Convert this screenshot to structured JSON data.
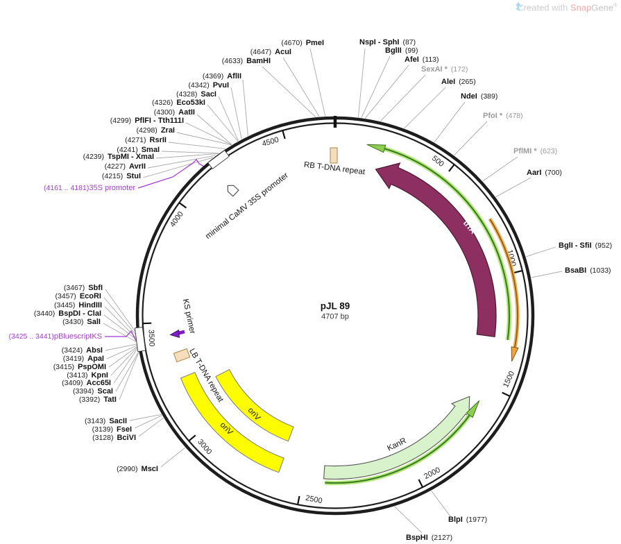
{
  "watermark": {
    "prefix": "Created with ",
    "brand_snap": "Snap",
    "brand_gene": "Gene",
    "reg": "®"
  },
  "plasmid": {
    "name": "pJL 89",
    "size": "4707 bp"
  },
  "ticks": [
    "500",
    "1000",
    "1500",
    "2000",
    "2500",
    "3000",
    "3500",
    "4000",
    "4500"
  ],
  "features": [
    {
      "label": "trfA"
    },
    {
      "label": "KanR"
    },
    {
      "label": "oriV"
    },
    {
      "label": "oriV"
    },
    {
      "label": "RB T-DNA repeat"
    },
    {
      "label": "LB T-DNA repeat"
    },
    {
      "label": "KS primer"
    },
    {
      "label": "minimal CaMV 35S promoter"
    }
  ],
  "regions": [
    {
      "pos": "(4161 .. 4181)",
      "name": "35S promoter"
    },
    {
      "pos": "(3425 .. 3441)",
      "name": "pBluescriptKS"
    }
  ],
  "sites": [
    {
      "pos": "(4670)",
      "name": "PmeI",
      "order": "pos-first",
      "muted": false
    },
    {
      "pos": "(4647)",
      "name": "AcuI",
      "order": "pos-first",
      "muted": false
    },
    {
      "pos": "(4633)",
      "name": "BamHI",
      "order": "pos-first",
      "muted": false
    },
    {
      "pos": "(4369)",
      "name": "AflII",
      "order": "pos-first",
      "muted": false
    },
    {
      "pos": "(4342)",
      "name": "PvuI",
      "order": "pos-first",
      "muted": false
    },
    {
      "pos": "(4328)",
      "name": "SacI",
      "order": "pos-first",
      "muted": false
    },
    {
      "pos": "(4326)",
      "name": "Eco53kI",
      "order": "pos-first",
      "muted": false
    },
    {
      "pos": "(4300)",
      "name": "AatII",
      "order": "pos-first",
      "muted": false
    },
    {
      "pos": "(4299)",
      "name": "PflFI - Tth111I",
      "order": "pos-first",
      "muted": false
    },
    {
      "pos": "(4298)",
      "name": "ZraI",
      "order": "pos-first",
      "muted": false
    },
    {
      "pos": "(4271)",
      "name": "RsrII",
      "order": "pos-first",
      "muted": false
    },
    {
      "pos": "(4241)",
      "name": "SmaI",
      "order": "pos-first",
      "muted": false
    },
    {
      "pos": "(4239)",
      "name": "TspMI - XmaI",
      "order": "pos-first",
      "muted": false
    },
    {
      "pos": "(4227)",
      "name": "AvrII",
      "order": "pos-first",
      "muted": false
    },
    {
      "pos": "(4215)",
      "name": "StuI",
      "order": "pos-first",
      "muted": false
    },
    {
      "pos": "(3467)",
      "name": "SbfI",
      "order": "pos-first",
      "muted": false
    },
    {
      "pos": "(3457)",
      "name": "EcoRI",
      "order": "pos-first",
      "muted": false
    },
    {
      "pos": "(3445)",
      "name": "HindIII",
      "order": "pos-first",
      "muted": false
    },
    {
      "pos": "(3440)",
      "name": "BspDI - ClaI",
      "order": "pos-first",
      "muted": false
    },
    {
      "pos": "(3430)",
      "name": "SalI",
      "order": "pos-first",
      "muted": false
    },
    {
      "pos": "(3424)",
      "name": "AbsI",
      "order": "pos-first",
      "muted": false
    },
    {
      "pos": "(3419)",
      "name": "ApaI",
      "order": "pos-first",
      "muted": false
    },
    {
      "pos": "(3415)",
      "name": "PspOMI",
      "order": "pos-first",
      "muted": false
    },
    {
      "pos": "(3413)",
      "name": "KpnI",
      "order": "pos-first",
      "muted": false
    },
    {
      "pos": "(3409)",
      "name": "Acc65I",
      "order": "pos-first",
      "muted": false
    },
    {
      "pos": "(3394)",
      "name": "ScaI",
      "order": "pos-first",
      "muted": false
    },
    {
      "pos": "(3392)",
      "name": "TatI",
      "order": "pos-first",
      "muted": false
    },
    {
      "pos": "(3143)",
      "name": "SacII",
      "order": "pos-first",
      "muted": false
    },
    {
      "pos": "(3139)",
      "name": "FseI",
      "order": "pos-first",
      "muted": false
    },
    {
      "pos": "(3128)",
      "name": "BciVI",
      "order": "pos-first",
      "muted": false
    },
    {
      "pos": "(2990)",
      "name": "MscI",
      "order": "pos-first",
      "muted": false
    },
    {
      "pos": "(87)",
      "name": "NspI - SphI",
      "order": "name-first",
      "muted": false
    },
    {
      "pos": "(99)",
      "name": "BglII",
      "order": "name-first",
      "muted": false
    },
    {
      "pos": "(113)",
      "name": "AfeI",
      "order": "name-first",
      "muted": false
    },
    {
      "pos": "(172)",
      "name": "SexAI *",
      "order": "name-first",
      "muted": true
    },
    {
      "pos": "(265)",
      "name": "AleI",
      "order": "name-first",
      "muted": false
    },
    {
      "pos": "(389)",
      "name": "NdeI",
      "order": "name-first",
      "muted": false
    },
    {
      "pos": "(478)",
      "name": "PfoI *",
      "order": "name-first",
      "muted": true
    },
    {
      "pos": "(623)",
      "name": "PflMI *",
      "order": "name-first",
      "muted": true
    },
    {
      "pos": "(700)",
      "name": "AarI",
      "order": "name-first",
      "muted": false
    },
    {
      "pos": "(952)",
      "name": "BglI - SfiI",
      "order": "name-first",
      "muted": false
    },
    {
      "pos": "(1033)",
      "name": "BsaBI",
      "order": "name-first",
      "muted": false
    },
    {
      "pos": "(1977)",
      "name": "BlpI",
      "order": "name-first",
      "muted": false
    },
    {
      "pos": "(2127)",
      "name": "BspHI",
      "order": "name-first",
      "muted": false
    }
  ],
  "colors": {
    "backbone": "#1d1d1d",
    "trfA_fill": "#8d3061",
    "trfA_stroke": "#47182f",
    "kanr_fill": "#d8f3cb",
    "kanr_stroke": "#555555",
    "oriv_fill": "#fdfd00",
    "oriv_stroke": "#7a7a7a",
    "tdna_fill": "#f6ddbb",
    "tdna_stroke": "#b08d57",
    "primer_fill": "#7e1ec4",
    "green_core": "#3f7d22",
    "green_glow": "#b6ea81",
    "orange_core": "#8a5f1d",
    "orange_glow": "#f1b459",
    "purple": "#a335d6",
    "muted_label": "#9b9b9b",
    "connector": "#a8a8a8"
  }
}
